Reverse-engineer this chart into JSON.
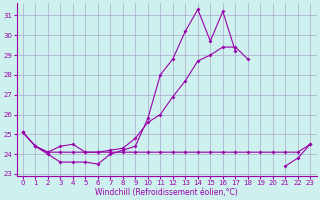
{
  "xlabel": "Windchill (Refroidissement éolien,°C)",
  "x": [
    0,
    1,
    2,
    3,
    4,
    5,
    6,
    7,
    8,
    9,
    10,
    11,
    12,
    13,
    14,
    15,
    16,
    17,
    18,
    19,
    20,
    21,
    22,
    23
  ],
  "line_flat": [
    25.1,
    24.4,
    24.1,
    24.1,
    24.1,
    24.1,
    24.1,
    24.1,
    24.1,
    24.1,
    24.1,
    24.1,
    24.1,
    24.1,
    24.1,
    24.1,
    24.1,
    24.1,
    24.1,
    24.1,
    24.1,
    24.1,
    24.1,
    24.5
  ],
  "line_rise": [
    25.1,
    24.4,
    24.1,
    24.4,
    24.5,
    24.1,
    24.1,
    24.2,
    24.3,
    24.8,
    25.6,
    26.0,
    26.9,
    27.7,
    28.7,
    29.0,
    29.4,
    29.4,
    28.8,
    null,
    null,
    23.4,
    23.8,
    24.5
  ],
  "line_zigzag": [
    25.1,
    24.4,
    24.0,
    23.6,
    23.6,
    23.6,
    23.5,
    24.0,
    24.2,
    24.4,
    25.8,
    28.0,
    28.8,
    30.2,
    31.3,
    29.7,
    31.2,
    29.2,
    null,
    null,
    null,
    null,
    null,
    null
  ],
  "ylim": [
    22.9,
    31.6
  ],
  "yticks": [
    23,
    24,
    25,
    26,
    27,
    28,
    29,
    30,
    31
  ],
  "xticks": [
    0,
    1,
    2,
    3,
    4,
    5,
    6,
    7,
    8,
    9,
    10,
    11,
    12,
    13,
    14,
    15,
    16,
    17,
    18,
    19,
    20,
    21,
    22,
    23
  ],
  "line_color": "#9900aa",
  "bg_color": "#cef0ef",
  "grid_color": "#aaaacc"
}
